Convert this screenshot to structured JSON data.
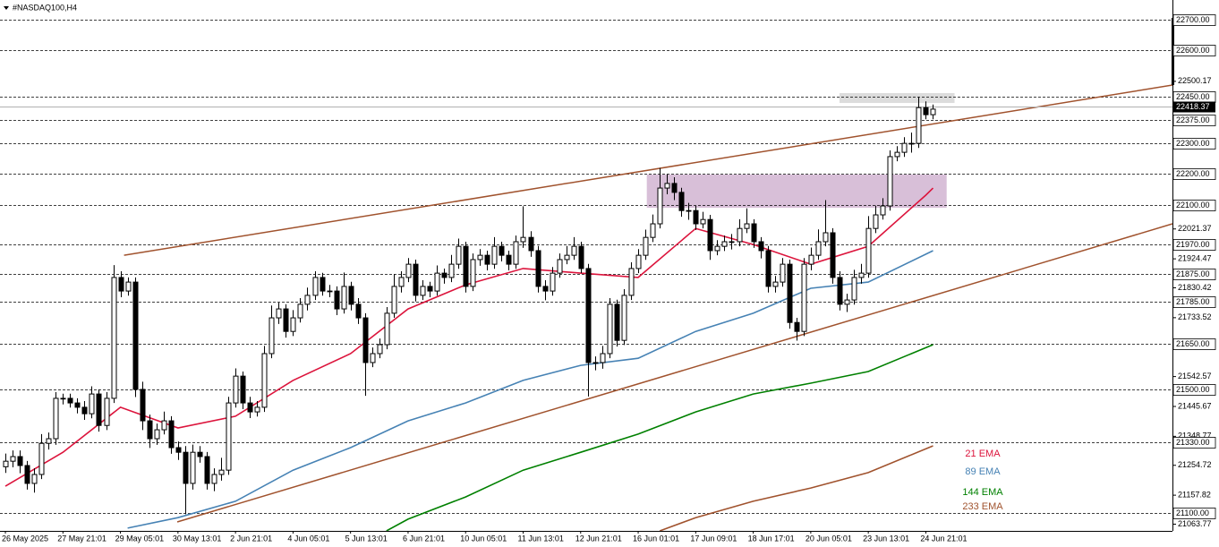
{
  "chart_data": {
    "type": "candlestick",
    "title": "#NASDAQ100,H4",
    "categories": [
      "26 May 2025",
      null,
      null,
      null,
      null,
      null,
      null,
      null,
      "27 May 21:01",
      null,
      null,
      null,
      null,
      null,
      null,
      null,
      "29 May 05:01",
      null,
      null,
      null,
      null,
      null,
      null,
      null,
      "30 May 13:01",
      null,
      null,
      null,
      null,
      null,
      null,
      null,
      "2 Jun 21:01",
      null,
      null,
      null,
      null,
      null,
      null,
      null,
      "4 Jun 05:01",
      null,
      null,
      null,
      null,
      null,
      null,
      null,
      "5 Jun 13:01",
      null,
      null,
      null,
      null,
      null,
      null,
      null,
      "6 Jun 21:01",
      null,
      null,
      null,
      null,
      null,
      null,
      null,
      "10 Jun 05:01",
      null,
      null,
      null,
      null,
      null,
      null,
      null,
      "11 Jun 13:01",
      null,
      null,
      null,
      null,
      null,
      null,
      null,
      "12 Jun 21:01",
      null,
      null,
      null,
      null,
      null,
      null,
      null,
      "16 Jun 01:01",
      null,
      null,
      null,
      null,
      null,
      null,
      null,
      "17 Jun 09:01",
      null,
      null,
      null,
      null,
      null,
      null,
      null,
      "18 Jun 17:01",
      null,
      null,
      null,
      null,
      null,
      null,
      null,
      "20 Jun 05:01",
      null,
      null,
      null,
      null,
      null,
      null,
      null,
      "23 Jun 13:01",
      null,
      null,
      null,
      null,
      null,
      null,
      null,
      "24 Jun 21:01",
      null
    ],
    "open": [
      21250,
      21268,
      21283,
      21254,
      21196,
      21225,
      21326,
      21341,
      21472,
      21472,
      21457,
      21443,
      21422,
      21486,
      21384,
      21472,
      21864,
      21820,
      21849,
      21501,
      21399,
      21341,
      21370,
      21399,
      21312,
      21297,
      21196,
      21297,
      21283,
      21196,
      21225,
      21239,
      21457,
      21544,
      21457,
      21428,
      21443,
      21617,
      21733,
      21762,
      21689,
      21733,
      21777,
      21806,
      21864,
      21820,
      21820,
      21762,
      21835,
      21777,
      21733,
      21588,
      21617,
      21646,
      21748,
      21835,
      21864,
      21907,
      21806,
      21835,
      21820,
      21878,
      21864,
      21907,
      21965,
      21835,
      21922,
      21936,
      21907,
      21965,
      21936,
      21907,
      21980,
      21994,
      21951,
      21835,
      21820,
      21878,
      21922,
      21936,
      21965,
      21893,
      21588,
      21588,
      21617,
      21777,
      21660,
      21806,
      21893,
      21936,
      21994,
      22038,
      22154,
      22169,
      22140,
      22081,
      22081,
      22038,
      22052,
      21951,
      21965,
      21980,
      21980,
      22023,
      22038,
      21980,
      21951,
      21835,
      21849,
      21907,
      21718,
      21689,
      21907,
      21936,
      21980,
      22009,
      21864,
      21777,
      21791,
      21864,
      21878,
      22023,
      22067,
      22096,
      22256,
      22270,
      22299,
      22299,
      22415,
      22392
    ],
    "high": [
      21293,
      21303,
      21303,
      21269,
      21245,
      21356,
      21361,
      21492,
      21487,
      21487,
      21472,
      21463,
      21511,
      21501,
      21492,
      21904,
      21884,
      21864,
      21864,
      21526,
      21419,
      21390,
      21429,
      21414,
      21332,
      21317,
      21322,
      21317,
      21298,
      21245,
      21279,
      21477,
      21569,
      21559,
      21477,
      21463,
      21642,
      21773,
      21782,
      21777,
      21758,
      21797,
      21831,
      21884,
      21879,
      21840,
      21835,
      21880,
      21850,
      21797,
      21748,
      21637,
      21666,
      21768,
      21875,
      21884,
      21927,
      21922,
      21855,
      21850,
      21903,
      21893,
      21937,
      21990,
      21980,
      21942,
      21956,
      21951,
      21995,
      21980,
      21951,
      22000,
      22095,
      22014,
      21966,
      21855,
      21898,
      21942,
      21966,
      21995,
      21980,
      21908,
      21608,
      21642,
      21797,
      21792,
      21826,
      21913,
      21956,
      22019,
      22068,
      22219,
      22199,
      22189,
      22155,
      22106,
      22096,
      22077,
      22067,
      21985,
      22000,
      22005,
      22053,
      22088,
      22053,
      21995,
      21966,
      21869,
      21927,
      21922,
      21733,
      21927,
      21961,
      22020,
      22115,
      22024,
      21884,
      21811,
      21889,
      21908,
      22063,
      22097,
      22121,
      22276,
      22290,
      22319,
      22334,
      22450,
      22435,
      22425
    ],
    "low": [
      21230,
      21248,
      21229,
      21176,
      21166,
      21210,
      21306,
      21321,
      21452,
      21442,
      21423,
      21402,
      21407,
      21364,
      21369,
      21457,
      21800,
      21805,
      21476,
      21369,
      21311,
      21321,
      21355,
      21292,
      21272,
      21096,
      21176,
      21263,
      21176,
      21171,
      21205,
      21224,
      21442,
      21437,
      21408,
      21413,
      21428,
      21602,
      21713,
      21669,
      21674,
      21718,
      21757,
      21791,
      21805,
      21800,
      21742,
      21747,
      21757,
      21713,
      21480,
      21573,
      21602,
      21631,
      21733,
      21815,
      21849,
      21786,
      21791,
      21800,
      21805,
      21844,
      21849,
      21892,
      21815,
      21820,
      21902,
      21887,
      21892,
      21916,
      21887,
      21892,
      21960,
      21931,
      21815,
      21790,
      21805,
      21863,
      21907,
      21921,
      21878,
      21478,
      21563,
      21568,
      21602,
      21640,
      21645,
      21791,
      21878,
      21921,
      21979,
      22023,
      22134,
      22115,
      22061,
      22051,
      22018,
      22023,
      21921,
      21936,
      21950,
      21955,
      21965,
      22008,
      21960,
      21926,
      21815,
      21815,
      21834,
      21698,
      21659,
      21674,
      21887,
      21921,
      21965,
      21844,
      21757,
      21752,
      21776,
      21844,
      21863,
      22008,
      22052,
      22081,
      22241,
      22255,
      22269,
      22284,
      22377,
      22377
    ],
    "close": [
      21268,
      21283,
      21254,
      21196,
      21225,
      21326,
      21341,
      21472,
      21472,
      21457,
      21443,
      21422,
      21486,
      21384,
      21472,
      21864,
      21820,
      21849,
      21501,
      21399,
      21341,
      21370,
      21399,
      21312,
      21297,
      21196,
      21297,
      21283,
      21196,
      21225,
      21239,
      21457,
      21544,
      21457,
      21428,
      21443,
      21617,
      21733,
      21762,
      21689,
      21733,
      21777,
      21806,
      21864,
      21820,
      21820,
      21762,
      21835,
      21777,
      21733,
      21588,
      21617,
      21646,
      21748,
      21835,
      21864,
      21907,
      21806,
      21835,
      21820,
      21878,
      21864,
      21907,
      21965,
      21835,
      21922,
      21936,
      21907,
      21965,
      21936,
      21907,
      21980,
      21994,
      21951,
      21835,
      21820,
      21878,
      21922,
      21936,
      21965,
      21893,
      21588,
      21588,
      21617,
      21777,
      21660,
      21806,
      21893,
      21936,
      21994,
      22038,
      22154,
      22169,
      22140,
      22081,
      22081,
      22038,
      22052,
      21951,
      21965,
      21980,
      21980,
      22023,
      22038,
      21980,
      21951,
      21835,
      21849,
      21907,
      21718,
      21689,
      21907,
      21936,
      21980,
      22009,
      21864,
      21777,
      21791,
      21864,
      21878,
      22023,
      22067,
      22096,
      22256,
      22270,
      22299,
      22299,
      22415,
      22392,
      22410
    ],
    "up_color": "#ffffff",
    "down_color": "#000000",
    "series": [
      {
        "name": "21 EMA",
        "color": "#dc143c",
        "x": [
          0,
          8,
          16,
          24,
          32,
          40,
          48,
          56,
          64,
          72,
          80,
          88,
          96,
          104,
          112,
          120,
          128,
          129
        ],
        "values": [
          21187,
          21297,
          21443,
          21376,
          21414,
          21530,
          21617,
          21762,
          21840,
          21893,
          21878,
          21864,
          22023,
          21971,
          21907,
          21965,
          22131,
          22154
        ]
      },
      {
        "name": "89 EMA",
        "color": "#4682b4",
        "x": [
          17,
          24,
          32,
          40,
          48,
          56,
          64,
          72,
          80,
          88,
          96,
          104,
          112,
          120,
          129
        ],
        "values": [
          21051,
          21085,
          21138,
          21239,
          21312,
          21399,
          21457,
          21530,
          21579,
          21602,
          21689,
          21748,
          21829,
          21849,
          21951
        ]
      },
      {
        "name": "144 EMA",
        "color": "#008000",
        "x": [
          53,
          56,
          64,
          72,
          80,
          88,
          96,
          104,
          112,
          120,
          129
        ],
        "values": [
          21042,
          21080,
          21152,
          21239,
          21297,
          21356,
          21428,
          21486,
          21521,
          21559,
          21646
        ]
      },
      {
        "name": "233 EMA",
        "color": "#a0522d",
        "x": [
          91,
          96,
          104,
          112,
          120,
          129
        ],
        "values": [
          21042,
          21085,
          21138,
          21181,
          21231,
          21318
        ]
      }
    ],
    "trendlines": [
      {
        "color": "#a0522d",
        "x": [
          16.5,
          162.3
        ],
        "values": [
          21936,
          22488
        ]
      },
      {
        "color": "#a0522d",
        "x": [
          23.9,
          162.3
        ],
        "values": [
          21071,
          22038
        ]
      }
    ],
    "zones": [
      {
        "color": "#d8bfd8",
        "x": [
          89.2,
          130.9
        ],
        "values": [
          22090,
          22198
        ]
      },
      {
        "color": "#dcdcdc",
        "x": [
          116,
          132
        ],
        "values": [
          22430,
          22462
        ]
      }
    ],
    "xlim": [
      -0.75,
      162.3
    ],
    "ylim": [
      21042,
      22764
    ],
    "yticks": [
      {
        "value": 22700,
        "label": "22700.00"
      },
      {
        "value": 22600,
        "label": "22600.00"
      },
      {
        "value": 22450,
        "label": "22450.00"
      },
      {
        "value": 22375,
        "label": "22375.00"
      },
      {
        "value": 22300,
        "label": "22300.00"
      },
      {
        "value": 22200,
        "label": "22200.00"
      },
      {
        "value": 22100,
        "label": "22100.00"
      },
      {
        "value": 21970,
        "label": "21970.00"
      },
      {
        "value": 21875,
        "label": "21875.00"
      },
      {
        "value": 21785,
        "label": "21785.00"
      },
      {
        "value": 21650,
        "label": "21650.00"
      },
      {
        "value": 21500,
        "label": "21500.00"
      },
      {
        "value": 21330,
        "label": "21330.00"
      },
      {
        "value": 21100,
        "label": "21100.00"
      }
    ],
    "yticks_plain": [
      22500.17,
      22021.37,
      21924.47,
      21830.42,
      21733.52,
      21542.57,
      21445.67,
      21348.77,
      21254.72,
      21157.82,
      21063.77
    ],
    "last_price": 22418.37,
    "grid": true
  }
}
